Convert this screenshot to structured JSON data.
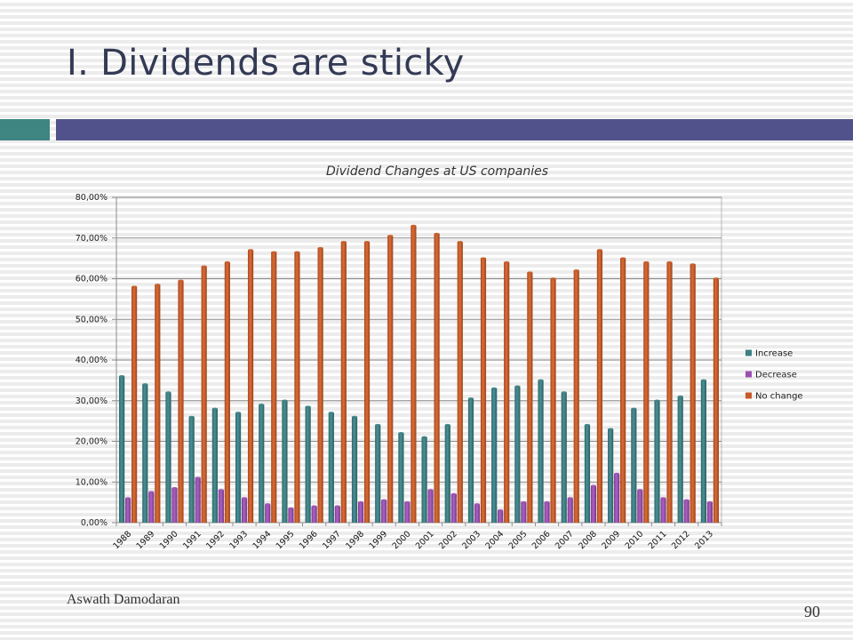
{
  "slide": {
    "title": "I. Dividends are sticky",
    "author": "Aswath Damodaran",
    "page_number": "90"
  },
  "colors": {
    "title_text": "#333a55",
    "accent_teal": "#3f8582",
    "accent_indigo": "#51528c"
  },
  "chart_data": {
    "type": "bar",
    "title": "Dividend Changes at US companies",
    "xlabel": "",
    "ylabel": "",
    "ylim": [
      0,
      0.8
    ],
    "y_ticks": [
      0,
      0.1,
      0.2,
      0.3,
      0.4,
      0.5,
      0.6,
      0.7,
      0.8
    ],
    "y_tick_labels": [
      "0,00%",
      "10,00%",
      "20,00%",
      "30,00%",
      "40,00%",
      "50,00%",
      "60,00%",
      "70,00%",
      "80,00%"
    ],
    "grid": true,
    "legend_position": "right",
    "categories": [
      "1988",
      "1989",
      "1990",
      "1991",
      "1992",
      "1993",
      "1994",
      "1995",
      "1996",
      "1997",
      "1998",
      "1999",
      "2000",
      "2001",
      "2002",
      "2003",
      "2004",
      "2005",
      "2006",
      "2007",
      "2008",
      "2009",
      "2010",
      "2011",
      "2012",
      "2013"
    ],
    "series": [
      {
        "name": "Increase",
        "color": "#3d7f83",
        "values": [
          0.36,
          0.34,
          0.32,
          0.26,
          0.28,
          0.27,
          0.29,
          0.3,
          0.285,
          0.27,
          0.26,
          0.24,
          0.22,
          0.21,
          0.24,
          0.305,
          0.33,
          0.335,
          0.35,
          0.32,
          0.24,
          0.23,
          0.28,
          0.3,
          0.31,
          0.35
        ]
      },
      {
        "name": "Decrease",
        "color": "#9b4fb1",
        "values": [
          0.06,
          0.075,
          0.085,
          0.11,
          0.08,
          0.06,
          0.045,
          0.035,
          0.04,
          0.04,
          0.05,
          0.055,
          0.05,
          0.08,
          0.07,
          0.045,
          0.03,
          0.05,
          0.05,
          0.06,
          0.09,
          0.12,
          0.08,
          0.06,
          0.055,
          0.05
        ]
      },
      {
        "name": "No change",
        "color": "#c65a28",
        "values": [
          0.58,
          0.585,
          0.595,
          0.63,
          0.64,
          0.67,
          0.665,
          0.665,
          0.675,
          0.69,
          0.69,
          0.705,
          0.73,
          0.71,
          0.69,
          0.65,
          0.64,
          0.615,
          0.6,
          0.62,
          0.67,
          0.65,
          0.64,
          0.64,
          0.635,
          0.6
        ]
      }
    ]
  }
}
